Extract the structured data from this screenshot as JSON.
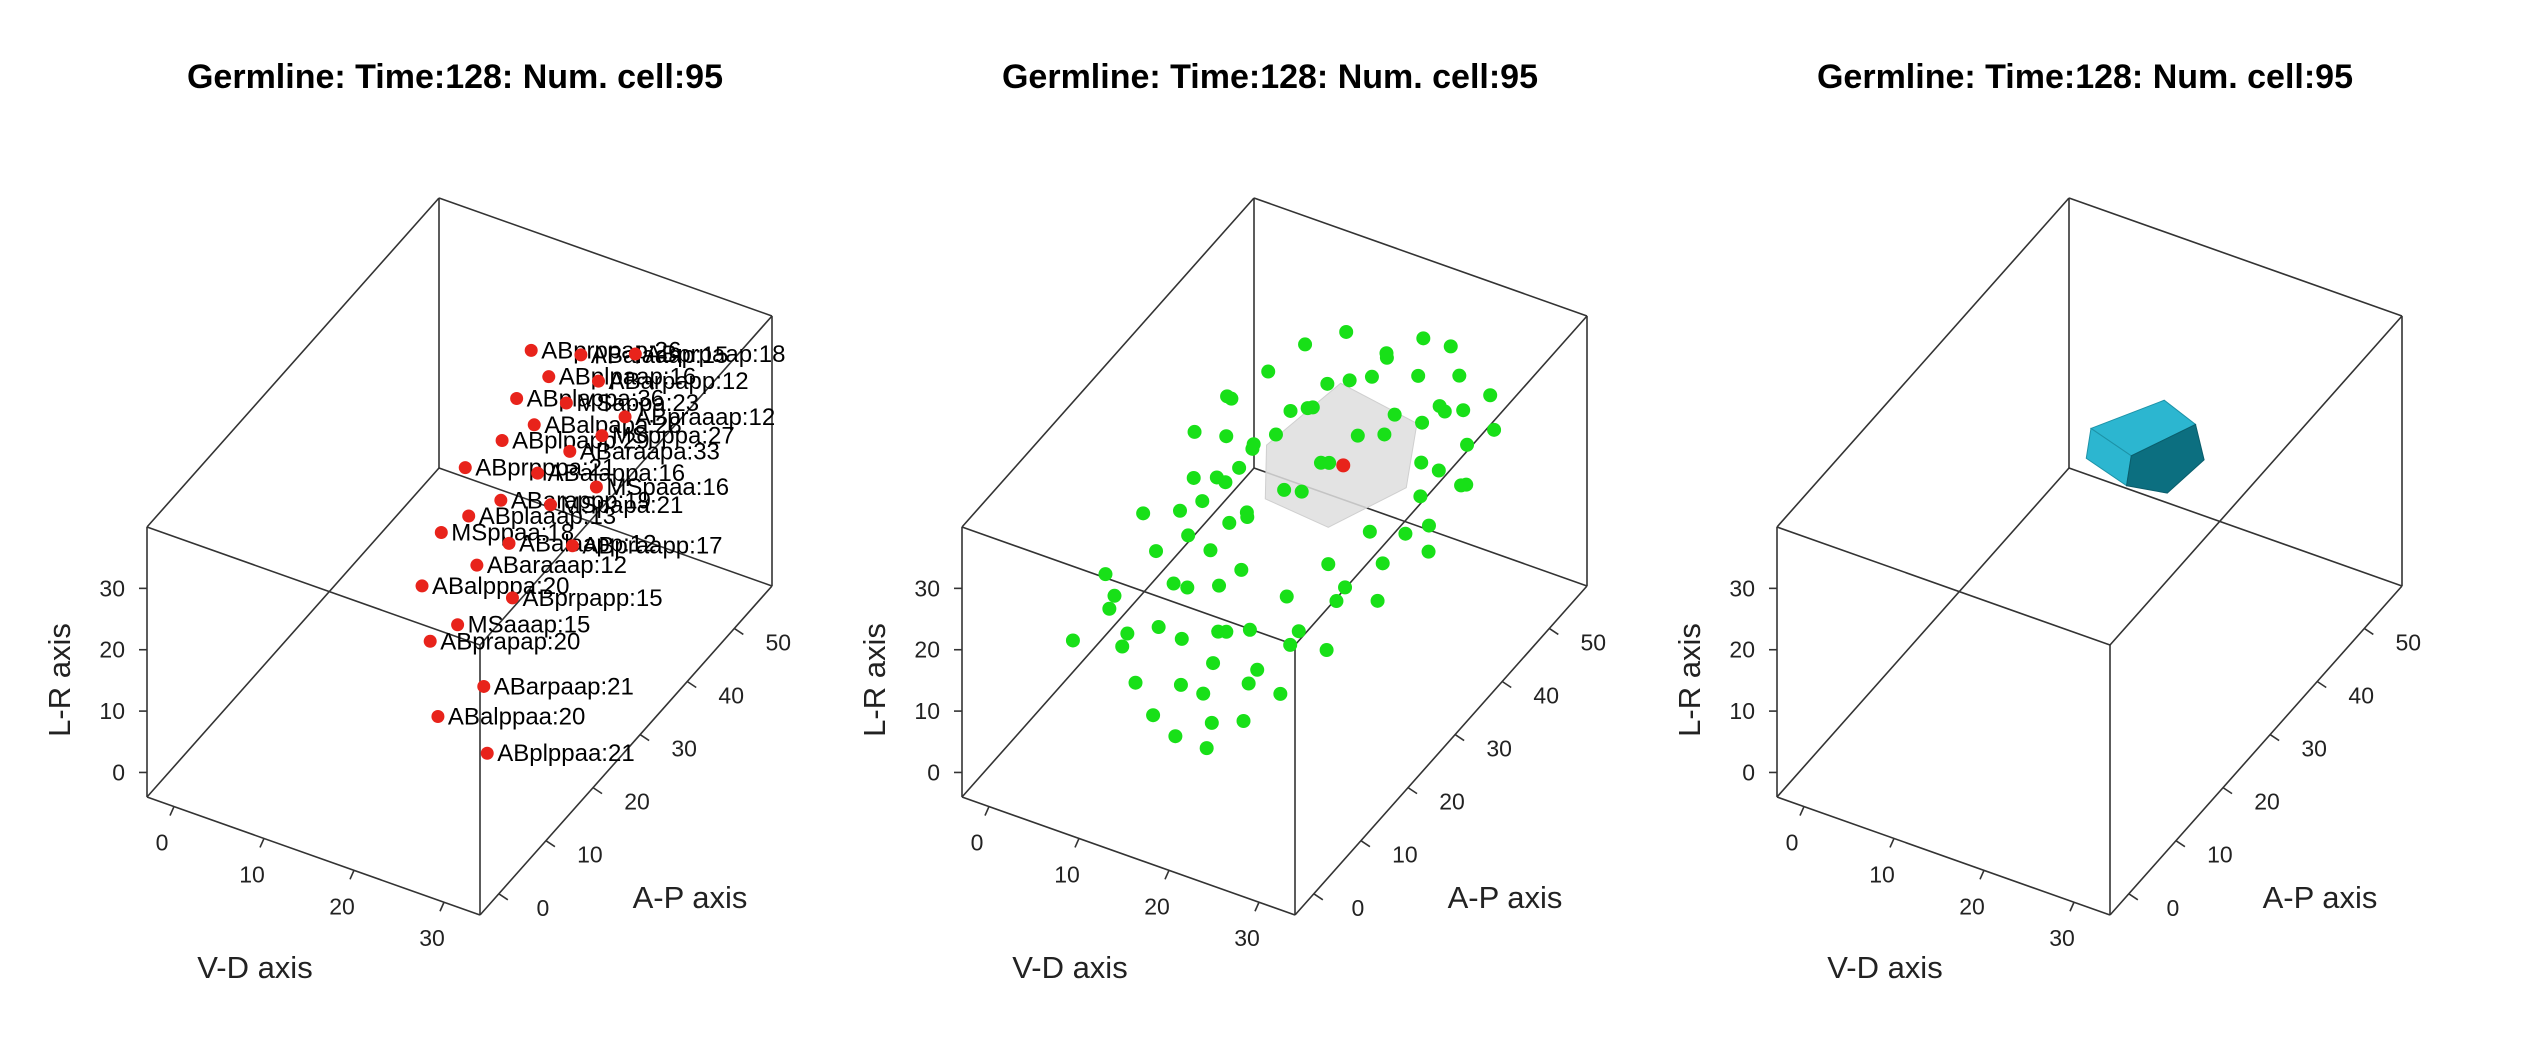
{
  "colors": {
    "background": "#ffffff",
    "box": "#333333",
    "labeled_cells": "#e8231b",
    "neighbor_cells": "#18e018",
    "focus_cell": "#e8231b",
    "hull_surface": "#dedede",
    "cell_shape_light": "#2cb6d0",
    "cell_shape_dark": "#0c6f80"
  },
  "chart_data": [
    {
      "type": "scatter",
      "title": "Germline: Time:128: Num. cell:95",
      "xlabel": "V-D axis",
      "ylabel": "A-P axis",
      "zlabel": "L-R axis",
      "x_ticks": [
        0,
        10,
        20,
        30
      ],
      "y_ticks": [
        0,
        10,
        20,
        30,
        40,
        50
      ],
      "z_ticks": [
        0,
        10,
        20,
        30
      ],
      "xlim": [
        -3,
        34
      ],
      "ylim": [
        -4,
        58
      ],
      "zlim": [
        -4,
        40
      ],
      "grid": false,
      "legend": "none",
      "series": [
        {
          "marker": "red-dots",
          "label_visibility": "dense, overlapping",
          "points": [
            {
              "label": "ABplppaa:21",
              "x": 28,
              "y": 9,
              "z": 8
            },
            {
              "label": "ABalppaa:20",
              "x": 22,
              "y": 10,
              "z": 10
            },
            {
              "label": "ABarpaap:21",
              "x": 25,
              "y": 14,
              "z": 13
            },
            {
              "label": "ABprapap:20",
              "x": 18,
              "y": 16,
              "z": 15
            },
            {
              "label": "MSaaap:15",
              "x": 20,
              "y": 18,
              "z": 17
            },
            {
              "label": "ABalpppa:20",
              "x": 15,
              "y": 20,
              "z": 19
            },
            {
              "label": "ABprpapp:15",
              "x": 24,
              "y": 22,
              "z": 20
            },
            {
              "label": "ABaraaap:12",
              "x": 19,
              "y": 24,
              "z": 21
            },
            {
              "label": "MSppaa:18",
              "x": 14,
              "y": 26,
              "z": 22
            },
            {
              "label": "ABalaapp:12",
              "x": 21,
              "y": 27,
              "z": 23
            },
            {
              "label": "ABplaaap:13",
              "x": 16,
              "y": 28,
              "z": 24
            },
            {
              "label": "ABpraapp:17",
              "x": 27,
              "y": 29,
              "z": 24
            },
            {
              "label": "ABarappp:19",
              "x": 18,
              "y": 31,
              "z": 25
            },
            {
              "label": "MSpapa:21",
              "x": 23,
              "y": 32,
              "z": 26
            },
            {
              "label": "ABprpppa:21",
              "x": 13,
              "y": 33,
              "z": 26
            },
            {
              "label": "ABalappa:16",
              "x": 20,
              "y": 35,
              "z": 27
            },
            {
              "label": "MSpaaa:16",
              "x": 26,
              "y": 36,
              "z": 27
            },
            {
              "label": "ABplpapp:29",
              "x": 15,
              "y": 37,
              "z": 28
            },
            {
              "label": "ABaraapa:33",
              "x": 22,
              "y": 38,
              "z": 29
            },
            {
              "label": "ABalpapa:28",
              "x": 17,
              "y": 40,
              "z": 29
            },
            {
              "label": "MSpppa:27",
              "x": 24,
              "y": 41,
              "z": 30
            },
            {
              "label": "ABplappa:36",
              "x": 14,
              "y": 42,
              "z": 30
            },
            {
              "label": "MSappa:23",
              "x": 19,
              "y": 43,
              "z": 31
            },
            {
              "label": "ABpraaap:12",
              "x": 25,
              "y": 44,
              "z": 31
            },
            {
              "label": "ABplpaap:16",
              "x": 16,
              "y": 45,
              "z": 32
            },
            {
              "label": "ABarpapp:12",
              "x": 21,
              "y": 46,
              "z": 33
            },
            {
              "label": "ABprppap:26",
              "x": 13,
              "y": 47,
              "z": 33
            },
            {
              "label": "ABalaaap:15",
              "x": 18,
              "y": 48,
              "z": 34
            },
            {
              "label": "ABprpaap:18",
              "x": 23,
              "y": 50,
              "z": 35
            }
          ]
        }
      ]
    },
    {
      "type": "scatter",
      "title": "Germline: Time:128: Num. cell:95",
      "xlabel": "V-D axis",
      "ylabel": "A-P axis",
      "zlabel": "L-R axis",
      "x_ticks": [
        0,
        10,
        20,
        30
      ],
      "y_ticks": [
        0,
        10,
        20,
        30,
        40,
        50
      ],
      "z_ticks": [
        0,
        10,
        20,
        30
      ],
      "xlim": [
        -3,
        34
      ],
      "ylim": [
        -4,
        58
      ],
      "zlim": [
        -4,
        40
      ],
      "grid": false,
      "legend": "none",
      "focus_cell": {
        "x": 20,
        "y": 33,
        "z": 30
      },
      "hull": [
        {
          "x": 12,
          "y": 32,
          "z": 30
        },
        {
          "x": 15,
          "y": 42,
          "z": 33
        },
        {
          "x": 24,
          "y": 41,
          "z": 32
        },
        {
          "x": 27,
          "y": 33,
          "z": 30
        },
        {
          "x": 22,
          "y": 26,
          "z": 27
        },
        {
          "x": 15,
          "y": 26,
          "z": 28
        }
      ],
      "series": [
        {
          "marker": "green-dots",
          "points": [
            {
              "x": 2,
              "y": 10,
              "z": 12
            },
            {
              "x": 4,
              "y": 15,
              "z": 16
            },
            {
              "x": 6,
              "y": 20,
              "z": 20
            },
            {
              "x": 8,
              "y": 26,
              "z": 24
            },
            {
              "x": 10,
              "y": 30,
              "z": 27
            },
            {
              "x": 12,
              "y": 34,
              "z": 30
            },
            {
              "x": 14,
              "y": 38,
              "z": 32
            },
            {
              "x": 16,
              "y": 42,
              "z": 34
            },
            {
              "x": 18,
              "y": 46,
              "z": 36
            },
            {
              "x": 20,
              "y": 50,
              "z": 36
            },
            {
              "x": 22,
              "y": 52,
              "z": 34
            },
            {
              "x": 24,
              "y": 50,
              "z": 32
            },
            {
              "x": 26,
              "y": 47,
              "z": 30
            },
            {
              "x": 28,
              "y": 44,
              "z": 28
            },
            {
              "x": 30,
              "y": 40,
              "z": 26
            },
            {
              "x": 29,
              "y": 34,
              "z": 24
            },
            {
              "x": 27,
              "y": 28,
              "z": 22
            },
            {
              "x": 25,
              "y": 22,
              "z": 20
            },
            {
              "x": 23,
              "y": 16,
              "z": 17
            },
            {
              "x": 21,
              "y": 11,
              "z": 14
            },
            {
              "x": 19,
              "y": 7,
              "z": 10
            },
            {
              "x": 16,
              "y": 5,
              "z": 8
            },
            {
              "x": 13,
              "y": 6,
              "z": 9
            },
            {
              "x": 10,
              "y": 8,
              "z": 11
            },
            {
              "x": 7,
              "y": 12,
              "z": 14
            },
            {
              "x": 9,
              "y": 18,
              "z": 18
            },
            {
              "x": 11,
              "y": 22,
              "z": 21
            },
            {
              "x": 13,
              "y": 26,
              "z": 24
            },
            {
              "x": 15,
              "y": 30,
              "z": 26
            },
            {
              "x": 17,
              "y": 34,
              "z": 28
            },
            {
              "x": 19,
              "y": 38,
              "z": 30
            },
            {
              "x": 21,
              "y": 42,
              "z": 31
            },
            {
              "x": 23,
              "y": 44,
              "z": 29
            },
            {
              "x": 25,
              "y": 40,
              "z": 27
            },
            {
              "x": 27,
              "y": 36,
              "z": 26
            },
            {
              "x": 24,
              "y": 31,
              "z": 23
            },
            {
              "x": 22,
              "y": 26,
              "z": 21
            },
            {
              "x": 20,
              "y": 21,
              "z": 19
            },
            {
              "x": 18,
              "y": 17,
              "z": 16
            },
            {
              "x": 16,
              "y": 13,
              "z": 13
            },
            {
              "x": 14,
              "y": 10,
              "z": 11
            },
            {
              "x": 12,
              "y": 14,
              "z": 14
            },
            {
              "x": 10,
              "y": 19,
              "z": 17
            },
            {
              "x": 8,
              "y": 23,
              "z": 21
            },
            {
              "x": 6,
              "y": 28,
              "z": 25
            },
            {
              "x": 4,
              "y": 32,
              "z": 28
            },
            {
              "x": 6,
              "y": 36,
              "z": 31
            },
            {
              "x": 8,
              "y": 40,
              "z": 33
            },
            {
              "x": 10,
              "y": 44,
              "z": 35
            },
            {
              "x": 13,
              "y": 47,
              "z": 36
            },
            {
              "x": 3,
              "y": 23,
              "z": 22
            },
            {
              "x": 5,
              "y": 27,
              "z": 20
            },
            {
              "x": 7,
              "y": 31,
              "z": 23
            },
            {
              "x": 9,
              "y": 35,
              "z": 26
            },
            {
              "x": 11,
              "y": 39,
              "z": 29
            },
            {
              "x": 13,
              "y": 43,
              "z": 31
            },
            {
              "x": 17,
              "y": 48,
              "z": 33
            },
            {
              "x": 21,
              "y": 47,
              "z": 33
            },
            {
              "x": 25,
              "y": 45,
              "z": 31
            },
            {
              "x": 28,
              "y": 38,
              "z": 29
            },
            {
              "x": 30,
              "y": 32,
              "z": 22
            },
            {
              "x": 28,
              "y": 25,
              "z": 19
            },
            {
              "x": 26,
              "y": 18,
              "z": 16
            },
            {
              "x": 24,
              "y": 12,
              "z": 13
            },
            {
              "x": 22,
              "y": 8,
              "z": 11
            },
            {
              "x": 20,
              "y": 4,
              "z": 9
            },
            {
              "x": 17,
              "y": 9,
              "z": 12
            },
            {
              "x": 15,
              "y": 16,
              "z": 15
            },
            {
              "x": 13,
              "y": 20,
              "z": 18
            },
            {
              "x": 11,
              "y": 26,
              "z": 22
            },
            {
              "x": 9,
              "y": 29,
              "z": 25
            },
            {
              "x": 7,
              "y": 33,
              "z": 28
            },
            {
              "x": 5,
              "y": 37,
              "z": 30
            },
            {
              "x": 3,
              "y": 15,
              "z": 19
            },
            {
              "x": 5,
              "y": 12,
              "z": 17
            },
            {
              "x": 8,
              "y": 9,
              "z": 15
            },
            {
              "x": 11,
              "y": 11,
              "z": 18
            },
            {
              "x": 14,
              "y": 24,
              "z": 27
            },
            {
              "x": 18,
              "y": 28,
              "z": 29
            },
            {
              "x": 20,
              "y": 30,
              "z": 33
            },
            {
              "x": 23,
              "y": 36,
              "z": 34
            },
            {
              "x": 26,
              "y": 42,
              "z": 35
            },
            {
              "x": 29,
              "y": 47,
              "z": 34
            },
            {
              "x": 31,
              "y": 44,
              "z": 32
            },
            {
              "x": 31,
              "y": 37,
              "z": 29
            },
            {
              "x": 29,
              "y": 29,
              "z": 27
            },
            {
              "x": 27,
              "y": 20,
              "z": 25
            },
            {
              "x": 25,
              "y": 14,
              "z": 22
            },
            {
              "x": 23,
              "y": 9,
              "z": 19
            },
            {
              "x": 18,
              "y": 12,
              "z": 20
            },
            {
              "x": 16,
              "y": 19,
              "z": 23
            },
            {
              "x": 12,
              "y": 29,
              "z": 32
            },
            {
              "x": 15,
              "y": 35,
              "z": 35
            },
            {
              "x": 19,
              "y": 41,
              "z": 37
            }
          ]
        }
      ]
    },
    {
      "type": "scatter",
      "title": "Germline: Time:128: Num. cell:95",
      "xlabel": "V-D axis",
      "ylabel": "A-P axis",
      "zlabel": "L-R axis",
      "x_ticks": [
        0,
        10,
        20,
        30
      ],
      "y_ticks": [
        0,
        10,
        20,
        30,
        40,
        50
      ],
      "z_ticks": [
        0,
        10,
        20,
        30
      ],
      "xlim": [
        -3,
        34
      ],
      "ylim": [
        -4,
        58
      ],
      "zlim": [
        -4,
        40
      ],
      "grid": false,
      "legend": "none",
      "series": [],
      "cell_shape": {
        "light_faces": [
          [
            {
              "x": 12,
              "y": 34,
              "z": 31
            },
            {
              "x": 17,
              "y": 40,
              "z": 33
            },
            {
              "x": 21,
              "y": 39,
              "z": 32
            },
            {
              "x": 17,
              "y": 33,
              "z": 30
            }
          ],
          [
            {
              "x": 12,
              "y": 34,
              "z": 31
            },
            {
              "x": 17,
              "y": 33,
              "z": 30
            },
            {
              "x": 17,
              "y": 32,
              "z": 26
            },
            {
              "x": 12,
              "y": 33,
              "z": 27
            }
          ]
        ],
        "dark_faces": [
          [
            {
              "x": 17,
              "y": 33,
              "z": 30
            },
            {
              "x": 21,
              "y": 39,
              "z": 32
            },
            {
              "x": 23,
              "y": 37,
              "z": 29
            },
            {
              "x": 21,
              "y": 33,
              "z": 26
            },
            {
              "x": 17,
              "y": 32,
              "z": 26
            }
          ]
        ]
      }
    }
  ]
}
